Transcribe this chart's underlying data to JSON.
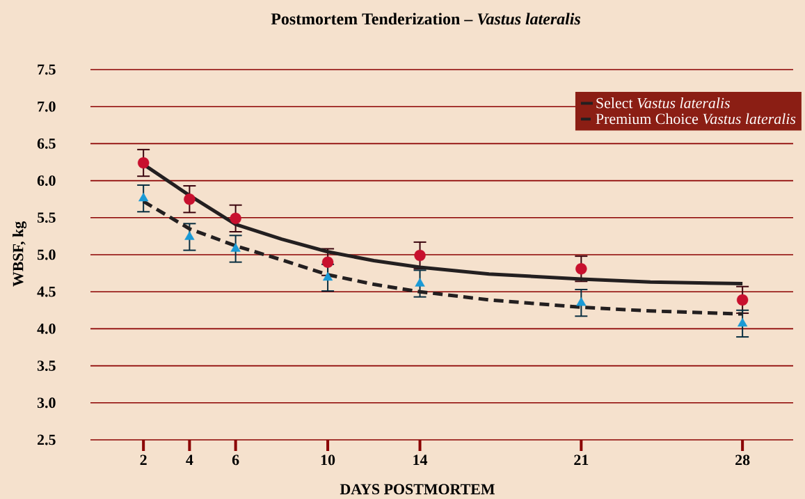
{
  "chart_data": {
    "type": "line",
    "title": "Postmortem Tenderization – *Vastus lateralis*",
    "xlabel": "DAYS POSTMORTEM",
    "ylabel": "WBSF, kg",
    "xlim": [
      -0.3,
      30.2
    ],
    "xticks": [
      2,
      4,
      6,
      10,
      14,
      21,
      28
    ],
    "ylim": [
      2.5,
      7.5
    ],
    "yticks": [
      {
        "value": 2.5,
        "label": "2.5"
      },
      {
        "value": 3,
        "label": "3.0"
      },
      {
        "value": 3.5,
        "label": "3.5"
      },
      {
        "value": 4,
        "label": "4.0"
      },
      {
        "value": 4.5,
        "label": "4.5"
      },
      {
        "value": 5,
        "label": "5.0"
      },
      {
        "value": 5.5,
        "label": "5.5"
      },
      {
        "value": 6,
        "label": "6.0"
      },
      {
        "value": 6.5,
        "label": "6.5"
      },
      {
        "value": 7,
        "label": "7.0"
      },
      {
        "value": 7.5,
        "label": "7.5"
      }
    ],
    "grid": "y",
    "legend": "top right",
    "series": [
      {
        "type": "scatter",
        "color": "#c8102e",
        "marker": "circle",
        "x": [
          2,
          4,
          6,
          10,
          14,
          21,
          28
        ],
        "values": [
          6.24,
          5.75,
          5.49,
          4.9,
          4.99,
          4.81,
          4.39
        ],
        "errors": [
          0.18,
          0.18,
          0.18,
          0.18,
          0.18,
          0.17,
          0.18
        ]
      },
      {
        "type": "scatter",
        "color": "#1a9ad6",
        "marker": "triangle",
        "x": [
          2,
          4,
          6,
          10,
          14,
          21,
          28
        ],
        "values": [
          5.76,
          5.24,
          5.08,
          4.69,
          4.61,
          4.35,
          4.07
        ],
        "errors": [
          0.18,
          0.18,
          0.18,
          0.18,
          0.18,
          0.18,
          0.18
        ]
      },
      {
        "type": "line",
        "name": "Select *Vastus lateralis*",
        "color": "#231f20",
        "line_style": "solid",
        "x": [
          2,
          4,
          6,
          8,
          10,
          12,
          14,
          17,
          21,
          24,
          28
        ],
        "values": [
          6.22,
          5.8,
          5.41,
          5.21,
          5.04,
          4.92,
          4.83,
          4.74,
          4.67,
          4.63,
          4.61
        ]
      },
      {
        "type": "line",
        "name": "Premium Choice *Vastus lateralis*",
        "color": "#231f20",
        "line_style": "dashed",
        "x": [
          2,
          4,
          6,
          8,
          10,
          12,
          14,
          17,
          21,
          24,
          28
        ],
        "values": [
          5.72,
          5.35,
          5.12,
          4.93,
          4.73,
          4.6,
          4.5,
          4.39,
          4.29,
          4.24,
          4.2
        ]
      }
    ]
  }
}
